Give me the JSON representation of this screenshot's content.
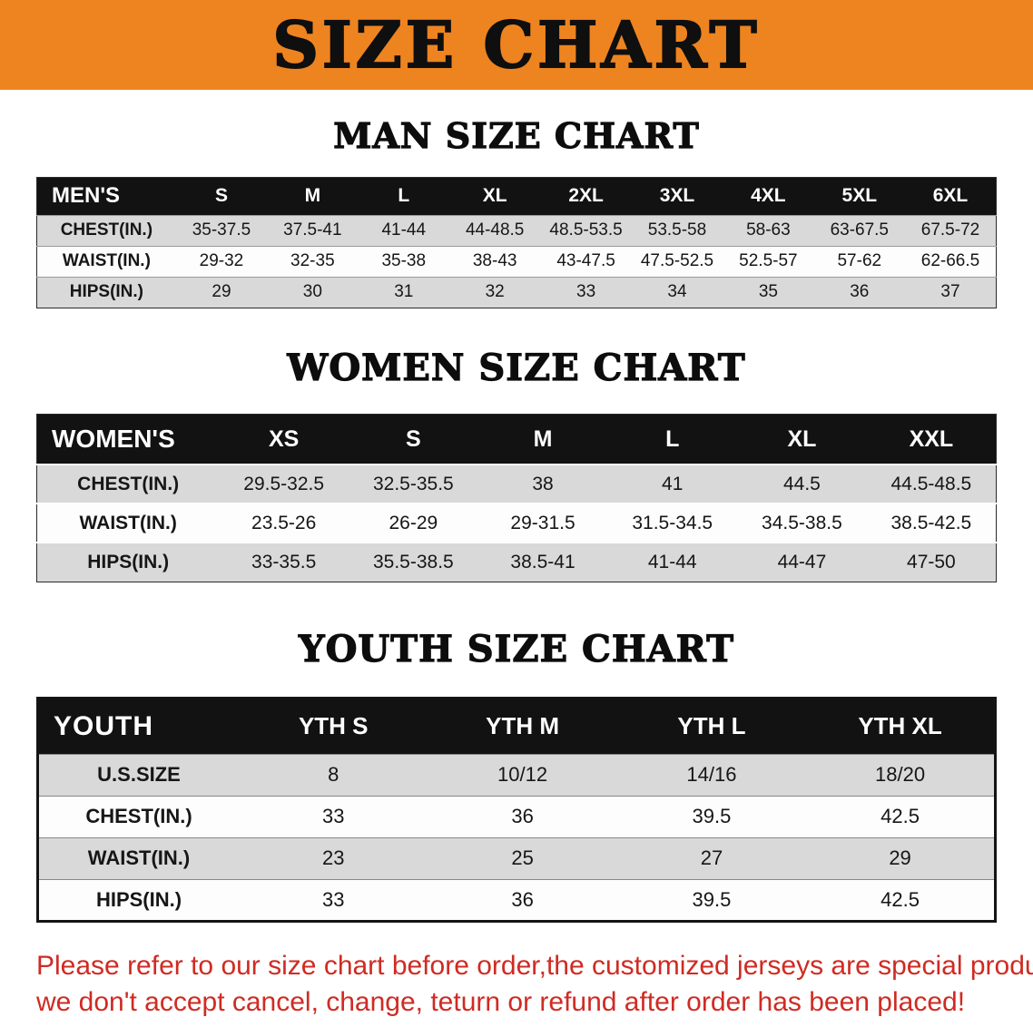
{
  "banner": {
    "title": "SIZE CHART",
    "bg_color": "#EE8420",
    "text_color": "#0F0F0F"
  },
  "sections": {
    "men": {
      "heading": "MAN SIZE CHART"
    },
    "women": {
      "heading": "WOMEN SIZE CHART"
    },
    "youth": {
      "heading": "YOUTH SIZE CHART"
    }
  },
  "tables": {
    "men": {
      "header": [
        "MEN'S",
        "S",
        "M",
        "L",
        "XL",
        "2XL",
        "3XL",
        "4XL",
        "5XL",
        "6XL"
      ],
      "rows": [
        [
          "CHEST(IN.)",
          "35-37.5",
          "37.5-41",
          "41-44",
          "44-48.5",
          "48.5-53.5",
          "53.5-58",
          "58-63",
          "63-67.5",
          "67.5-72"
        ],
        [
          "WAIST(IN.)",
          "29-32",
          "32-35",
          "35-38",
          "38-43",
          "43-47.5",
          "47.5-52.5",
          "52.5-57",
          "57-62",
          "62-66.5"
        ],
        [
          "HIPS(IN.)",
          "29",
          "30",
          "31",
          "32",
          "33",
          "34",
          "35",
          "36",
          "37"
        ]
      ]
    },
    "women": {
      "header": [
        "WOMEN'S",
        "XS",
        "S",
        "M",
        "L",
        "XL",
        "XXL"
      ],
      "rows": [
        [
          "CHEST(IN.)",
          "29.5-32.5",
          "32.5-35.5",
          "38",
          "41",
          "44.5",
          "44.5-48.5"
        ],
        [
          "WAIST(IN.)",
          "23.5-26",
          "26-29",
          "29-31.5",
          "31.5-34.5",
          "34.5-38.5",
          "38.5-42.5"
        ],
        [
          "HIPS(IN.)",
          "33-35.5",
          "35.5-38.5",
          "38.5-41",
          "41-44",
          "44-47",
          "47-50"
        ]
      ]
    },
    "youth": {
      "header": [
        "YOUTH",
        "YTH S",
        "YTH M",
        "YTH L",
        "YTH XL"
      ],
      "rows": [
        [
          "U.S.SIZE",
          "8",
          "10/12",
          "14/16",
          "18/20"
        ],
        [
          "CHEST(IN.)",
          "33",
          "36",
          "39.5",
          "42.5"
        ],
        [
          "WAIST(IN.)",
          "23",
          "25",
          "27",
          "29"
        ],
        [
          "HIPS(IN.)",
          "33",
          "36",
          "39.5",
          "42.5"
        ]
      ]
    }
  },
  "footer": {
    "line1": "Please refer to our size chart before order,the customized jerseys are special products,",
    "line2": "we don't accept cancel, change, teturn or refund after order has been placed!",
    "text_color": "#CF2B23"
  }
}
